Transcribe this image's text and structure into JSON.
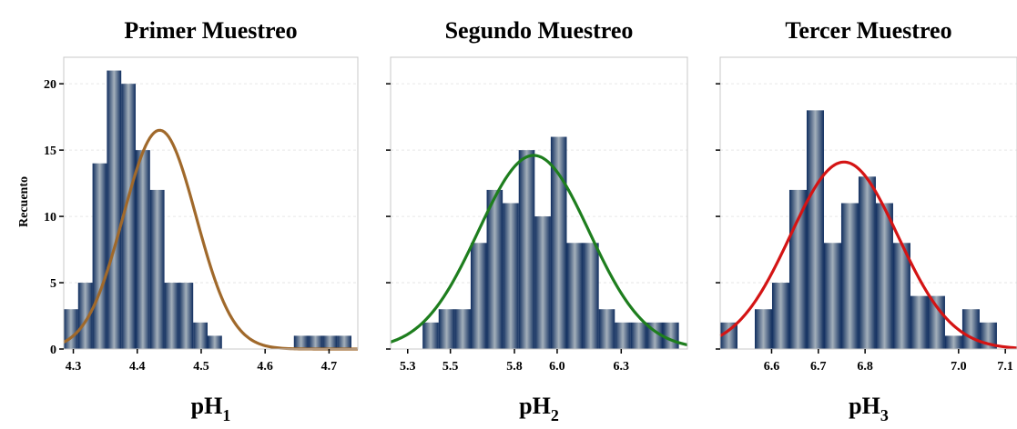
{
  "figure": {
    "ylabel": "Recuento",
    "bar_gradient": [
      "#0f2d5e",
      "#a4b0bb",
      "#0f2d5e"
    ],
    "panel_border": "#c8c8c8",
    "grid_color": "#e6e6e6"
  },
  "chart_data": [
    {
      "type": "bar",
      "title": "Primer Muestreo",
      "xlabel_main": "pH",
      "xlabel_sub": "1",
      "ylabel": "Recuento",
      "xlim": [
        4.285,
        4.745
      ],
      "ylim": [
        0,
        22
      ],
      "xticks": [
        "4.3",
        "4.4",
        "4.5",
        "4.6",
        "4.7"
      ],
      "yticks": [
        "0",
        "5",
        "10",
        "15",
        "20"
      ],
      "grid": true,
      "bin_width": 0.0225,
      "bin_starts": [
        4.285,
        4.3075,
        4.33,
        4.3525,
        4.375,
        4.3975,
        4.42,
        4.4425,
        4.465,
        4.4875,
        4.51,
        4.5325,
        4.555,
        4.5775,
        4.6,
        4.6225,
        4.645,
        4.6675,
        4.69,
        4.7125
      ],
      "counts": [
        3,
        5,
        14,
        21,
        20,
        15,
        12,
        5,
        5,
        2,
        1,
        0,
        0,
        0,
        0,
        0,
        1,
        1,
        1,
        1
      ],
      "curve": {
        "color": "#a0692b",
        "mean": 4.435,
        "sd": 0.057,
        "peak": 16.5
      }
    },
    {
      "type": "bar",
      "title": "Segundo Muestreo",
      "xlabel_main": "pH",
      "xlabel_sub": "2",
      "ylabel": "",
      "xlim": [
        5.22,
        6.61
      ],
      "ylim": [
        0,
        22
      ],
      "xticks": [
        "5.3",
        "5.5",
        "5.8",
        "6.0",
        "6.3"
      ],
      "yticks": [],
      "grid": true,
      "bin_width": 0.075,
      "bin_starts": [
        5.22,
        5.295,
        5.37,
        5.445,
        5.52,
        5.595,
        5.67,
        5.745,
        5.82,
        5.895,
        5.97,
        6.045,
        6.12,
        6.195,
        6.27,
        6.345,
        6.42,
        6.495
      ],
      "counts": [
        0,
        0,
        2,
        3,
        3,
        8,
        12,
        11,
        15,
        10,
        16,
        8,
        8,
        3,
        2,
        2,
        2,
        2
      ],
      "curve": {
        "color": "#1e7e1e",
        "mean": 5.89,
        "sd": 0.26,
        "peak": 14.6
      }
    },
    {
      "type": "bar",
      "title": "Tercer Muestreo",
      "xlabel_main": "pH",
      "xlabel_sub": "3",
      "ylabel": "",
      "xlim": [
        6.49,
        7.125
      ],
      "ylim": [
        0,
        22
      ],
      "xticks": [
        "6.6",
        "6.7",
        "6.8",
        "7.0",
        "7.1"
      ],
      "yticks": [],
      "grid": true,
      "bin_width": 0.037,
      "bin_starts": [
        6.49,
        6.527,
        6.564,
        6.601,
        6.638,
        6.675,
        6.712,
        6.749,
        6.786,
        6.823,
        6.86,
        6.897,
        6.934,
        6.971,
        7.008,
        7.045,
        7.082
      ],
      "counts": [
        2,
        0,
        3,
        5,
        12,
        18,
        8,
        11,
        13,
        11,
        8,
        4,
        4,
        1,
        3,
        2,
        0
      ],
      "curve": {
        "color": "#d41414",
        "mean": 6.755,
        "sd": 0.115,
        "peak": 14.1
      }
    }
  ]
}
